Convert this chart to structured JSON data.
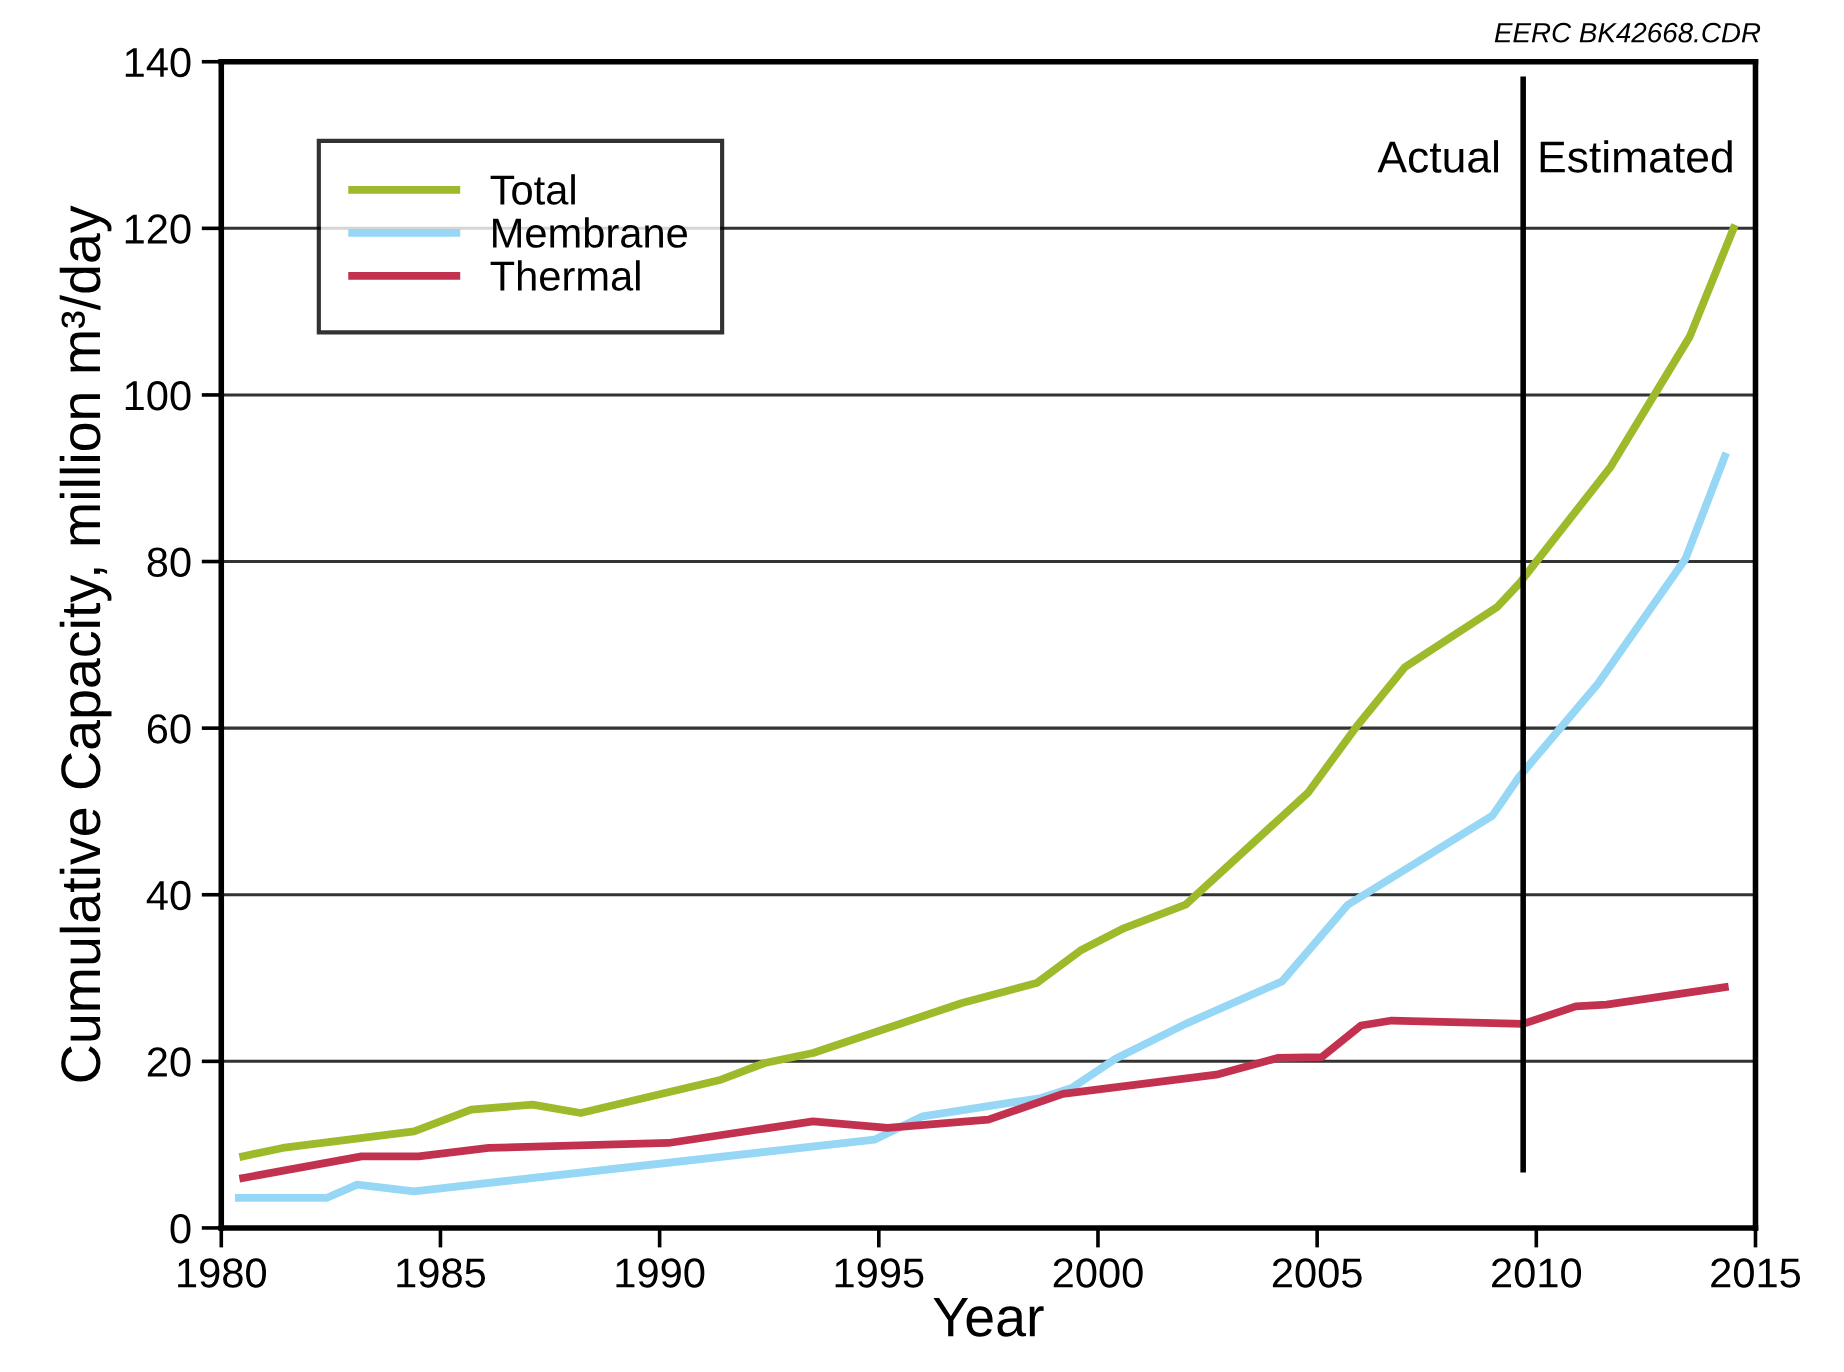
{
  "chart_data": {
    "type": "line",
    "xlabel": "Year",
    "ylabel": "Cumulative Capacity, million m³/day",
    "xlim": [
      1980,
      2015
    ],
    "xticks": [
      1980,
      1985,
      1990,
      1995,
      2000,
      2005,
      2010,
      2015
    ],
    "ylim": [
      0,
      140
    ],
    "yticks": [
      0,
      20,
      40,
      60,
      80,
      100,
      120,
      140
    ],
    "grid": "y",
    "legend": "top left",
    "line_style": "solid",
    "marker": "none",
    "series": [
      {
        "name": "Total",
        "color": "#9dba2a",
        "x": [
          1980.5,
          1981.4,
          1984.4,
          1985.7,
          1987.1,
          1988.2,
          1991.4,
          1992.4,
          1993.5,
          1996.9,
          1998.6,
          1999.6,
          2000.6,
          2002.0,
          2004.8,
          2005.9,
          2007.0,
          2009.1,
          2009.6,
          2011.7,
          2013.5,
          2014.5
        ],
        "values": [
          8.6,
          9.6,
          11.6,
          14.2,
          14.8,
          13.8,
          17.8,
          19.8,
          21.0,
          27.0,
          29.4,
          33.3,
          36.0,
          38.8,
          52.3,
          60.2,
          67.3,
          74.5,
          77.3,
          91.4,
          107,
          120
        ]
      },
      {
        "name": "Membrane",
        "color": "#96d7f5",
        "x": [
          1980.4,
          1982.4,
          1983.1,
          1984.4,
          1994.9,
          1996.0,
          1998.7,
          1999.4,
          2000.4,
          2002.0,
          2004.2,
          2005.7,
          2007.0,
          2009.0,
          2009.6,
          2011.4,
          2013.4,
          2014.3
        ],
        "values": [
          3.6,
          3.6,
          5.2,
          4.4,
          10.6,
          13.4,
          15.6,
          16.8,
          20.3,
          24.5,
          29.6,
          38.8,
          43.0,
          49.5,
          54.1,
          65.3,
          80.3,
          92.6
        ]
      },
      {
        "name": "Thermal",
        "color": "#c2324f",
        "x": [
          1980.5,
          1983.2,
          1984.5,
          1986.1,
          1990.2,
          1993.5,
          1995.2,
          1997.5,
          1999.2,
          2002.7,
          2004.1,
          2005.1,
          2006.0,
          2006.7,
          2009.7,
          2010.9,
          2011.6,
          2014.3
        ],
        "values": [
          6.0,
          8.6,
          8.6,
          9.6,
          10.2,
          12.8,
          12.0,
          13.0,
          16.1,
          18.4,
          20.4,
          20.5,
          24.3,
          24.9,
          24.5,
          26.6,
          26.8,
          28.9
        ]
      }
    ],
    "ref_lines": [
      {
        "axis": "x",
        "value": 2009.7,
        "color": "#000000",
        "line_style": "solid"
      }
    ],
    "annotations": [
      "Actual",
      "Estimated",
      "EERC BK42668.CDR"
    ]
  }
}
